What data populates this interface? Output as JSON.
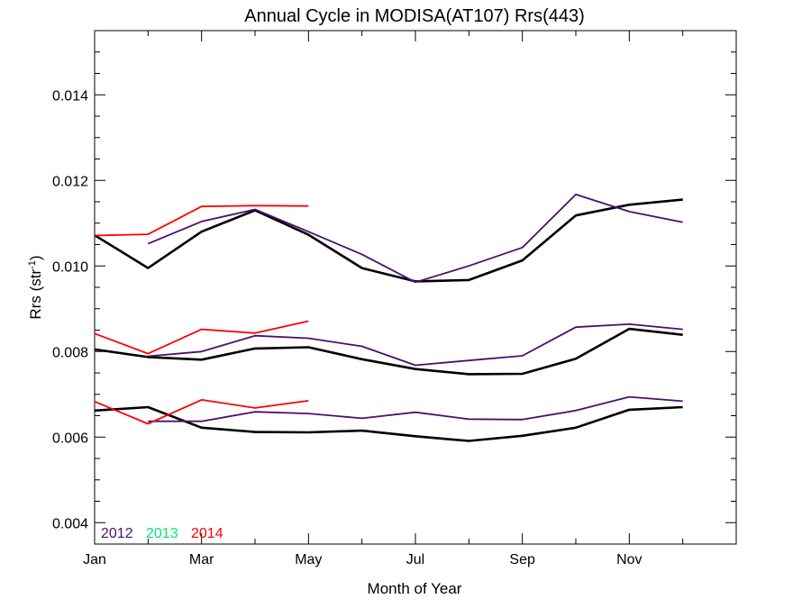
{
  "chart_data": {
    "type": "line",
    "title": "Annual Cycle in MODISA(AT107) Rrs(443)",
    "xlabel": "Month of Year",
    "ylabel": "Rrs (str",
    "ylabel_sup": "-1",
    "ylabel_end": ")",
    "xlim": [
      1,
      13
    ],
    "ylim": [
      0.0035,
      0.0155
    ],
    "x_ticks": [
      {
        "value": 1,
        "label": "Jan"
      },
      {
        "value": 3,
        "label": "Mar"
      },
      {
        "value": 5,
        "label": "May"
      },
      {
        "value": 7,
        "label": "Jul"
      },
      {
        "value": 9,
        "label": "Sep"
      },
      {
        "value": 11,
        "label": "Nov"
      }
    ],
    "y_ticks": [
      {
        "value": 0.004,
        "label": "0.004"
      },
      {
        "value": 0.006,
        "label": "0.006"
      },
      {
        "value": 0.008,
        "label": "0.008"
      },
      {
        "value": 0.01,
        "label": "0.010"
      },
      {
        "value": 0.012,
        "label": "0.012"
      },
      {
        "value": 0.014,
        "label": "0.014"
      }
    ],
    "grid": false,
    "legend": {
      "placement": "bottom-left",
      "entries": [
        {
          "label": "2012",
          "color": "#4b0f6e"
        },
        {
          "label": "2013",
          "color": "#00e676"
        },
        {
          "label": "2014",
          "color": "#ff0000"
        }
      ]
    },
    "series": [
      {
        "group": "upper",
        "color": "#000000",
        "x": [
          1,
          2,
          3,
          4,
          5,
          6,
          7,
          8,
          9,
          10,
          11,
          12
        ],
        "values": [
          0.01072,
          0.00995,
          0.0108,
          0.0113,
          0.01073,
          0.00995,
          0.00964,
          0.00967,
          0.01013,
          0.01118,
          0.01143,
          0.01155
        ]
      },
      {
        "group": "upper",
        "color": "#4b0f6e",
        "x": [
          2,
          3,
          4,
          5,
          6,
          7,
          8,
          9,
          10,
          11,
          12
        ],
        "values": [
          0.01052,
          0.01104,
          0.01132,
          0.0108,
          0.01027,
          0.00962,
          0.01,
          0.01043,
          0.01167,
          0.01127,
          0.01102
        ]
      },
      {
        "group": "upper",
        "color": "#ff0000",
        "x": [
          1,
          2,
          3,
          4,
          5
        ],
        "values": [
          0.01071,
          0.01074,
          0.01139,
          0.01141,
          0.0114
        ]
      },
      {
        "group": "middle",
        "color": "#000000",
        "x": [
          1,
          2,
          3,
          4,
          5,
          6,
          7,
          8,
          9,
          10,
          11,
          12
        ],
        "values": [
          0.00805,
          0.00787,
          0.00781,
          0.00807,
          0.0081,
          0.00782,
          0.00759,
          0.00747,
          0.00748,
          0.00783,
          0.00853,
          0.00839
        ]
      },
      {
        "group": "middle",
        "color": "#4b0f6e",
        "x": [
          2,
          3,
          4,
          5,
          6,
          7,
          8,
          9,
          10,
          11,
          12
        ],
        "values": [
          0.00789,
          0.008,
          0.00837,
          0.00831,
          0.00812,
          0.00768,
          0.00779,
          0.0079,
          0.00857,
          0.00864,
          0.00852
        ]
      },
      {
        "group": "middle",
        "color": "#ff0000",
        "x": [
          1,
          2,
          3,
          4,
          5
        ],
        "values": [
          0.00842,
          0.00795,
          0.00852,
          0.00843,
          0.00871
        ]
      },
      {
        "group": "lower",
        "color": "#000000",
        "x": [
          1,
          2,
          3,
          4,
          5,
          6,
          7,
          8,
          9,
          10,
          11,
          12
        ],
        "values": [
          0.00662,
          0.0067,
          0.00622,
          0.00612,
          0.00611,
          0.00615,
          0.00602,
          0.00591,
          0.00603,
          0.00622,
          0.00664,
          0.0067
        ]
      },
      {
        "group": "lower",
        "color": "#4b0f6e",
        "x": [
          2,
          3,
          4,
          5,
          6,
          7,
          8,
          9,
          10,
          11,
          12
        ],
        "values": [
          0.00637,
          0.00637,
          0.00659,
          0.00655,
          0.00644,
          0.00658,
          0.00642,
          0.00641,
          0.00662,
          0.00694,
          0.00684
        ]
      },
      {
        "group": "lower",
        "color": "#ff0000",
        "x": [
          1,
          2,
          3,
          4,
          5
        ],
        "values": [
          0.00683,
          0.00631,
          0.00687,
          0.00668,
          0.00685
        ]
      }
    ]
  }
}
